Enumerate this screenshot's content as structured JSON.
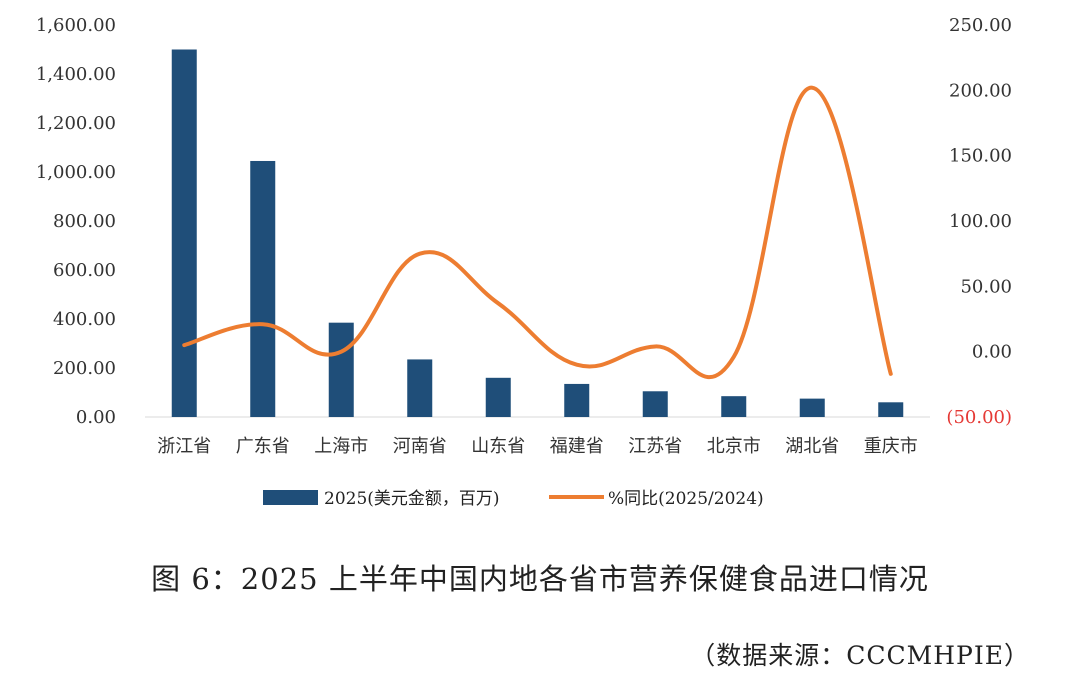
{
  "chart_data": {
    "type": "bar+line",
    "categories": [
      "浙江省",
      "广东省",
      "上海市",
      "河南省",
      "山东省",
      "福建省",
      "江苏省",
      "北京市",
      "湖北省",
      "重庆市"
    ],
    "series": [
      {
        "name": "2025(美元金额，百万)",
        "type": "bar",
        "axis": "left",
        "color": "#1f4e79",
        "values": [
          1500,
          1045,
          385,
          235,
          160,
          135,
          105,
          85,
          75,
          60
        ]
      },
      {
        "name": "%同比(2025/2024)",
        "type": "line",
        "axis": "right",
        "color": "#ed7d31",
        "values": [
          5,
          21,
          0,
          75,
          37,
          -10,
          4,
          -4,
          202,
          -17
        ]
      }
    ],
    "y_left": {
      "lim": [
        0,
        1600
      ],
      "ticks": [
        0,
        200,
        400,
        600,
        800,
        1000,
        1200,
        1400,
        1600
      ],
      "tick_labels": [
        "0.00",
        "200.00",
        "400.00",
        "600.00",
        "800.00",
        "1,000.00",
        "1,200.00",
        "1,400.00",
        "1,600.00"
      ]
    },
    "y_right": {
      "lim": [
        -50,
        250
      ],
      "ticks": [
        -50,
        0,
        50,
        100,
        150,
        200,
        250
      ],
      "tick_labels": [
        "(50.00)",
        "0.00",
        "50.00",
        "100.00",
        "150.00",
        "200.00",
        "250.00"
      ],
      "negative_color": "#e53935"
    },
    "grid": false,
    "legend": "bottom"
  },
  "caption": "图 6：2025 上半年中国内地各省市营养保健食品进口情况",
  "source": "（数据来源：CCCMHPIE）"
}
